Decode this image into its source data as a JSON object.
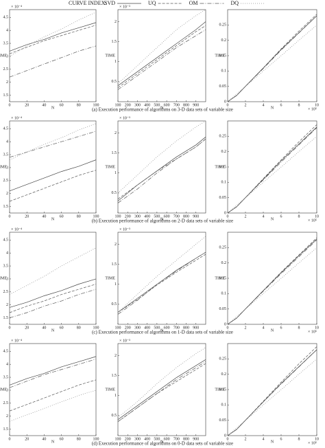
{
  "legend_title": "CURVE INDEX:",
  "captions": [
    "(a) Execution performance of algorithms on 3-D data sets of variable size",
    "(b) Execution performance of algorithms on 2-D data sets of variable size",
    "(c) Execution performance of algorithms on 1-D data sets of variable size",
    "(d) Execution performance of algorithms on 0-D data sets of variable size"
  ],
  "chart_data": [
    {
      "type": "line",
      "ylabel": "TIME",
      "xlabel": "N",
      "yscale_label": "× 10⁻⁴",
      "x": [
        0,
        20,
        40,
        60,
        80,
        100
      ],
      "xlim": [
        0,
        100
      ],
      "xticks": [
        0,
        20,
        40,
        60,
        80,
        100
      ],
      "ylim": [
        1.25,
        4.8
      ],
      "yticks": [
        1.5,
        2,
        2.5,
        3,
        3.5,
        4,
        4.5
      ],
      "series": [
        {
          "name": "SVD",
          "color": "#444444",
          "dash": "none",
          "values": [
            3.2,
            3.45,
            3.65,
            3.9,
            4.1,
            4.3
          ]
        },
        {
          "name": "UQ",
          "color": "#555555",
          "dash": "4 2",
          "values": [
            3.1,
            3.35,
            3.6,
            3.8,
            4.0,
            4.2
          ]
        },
        {
          "name": "OM",
          "color": "#555555",
          "dash": "6 2 1 2",
          "values": [
            2.2,
            2.45,
            2.7,
            2.95,
            3.2,
            3.4
          ]
        },
        {
          "name": "DQ",
          "color": "#888888",
          "dash": "1 2",
          "values": [
            3.0,
            3.4,
            3.75,
            4.05,
            4.4,
            4.7
          ]
        }
      ]
    },
    {
      "type": "line",
      "ylabel": "TIME",
      "xlabel": "N",
      "yscale_label": "× 10⁻³",
      "x": [
        100,
        300,
        500,
        700,
        900,
        1000
      ],
      "xlim": [
        100,
        1000
      ],
      "xticks": [
        100,
        200,
        300,
        400,
        500,
        600,
        700,
        800,
        900
      ],
      "ylim": [
        0,
        2.3
      ],
      "yticks": [
        0.5,
        1,
        1.5,
        2
      ],
      "series": [
        {
          "values": [
            0.4,
            0.75,
            1.1,
            1.45,
            1.8,
            2.0
          ]
        },
        {
          "values": [
            0.35,
            0.7,
            1.05,
            1.4,
            1.75,
            1.9
          ]
        },
        {
          "values": [
            0.3,
            0.65,
            1.0,
            1.35,
            1.65,
            1.8
          ]
        },
        {
          "values": [
            0.45,
            0.9,
            1.35,
            1.8,
            2.15,
            2.3
          ]
        }
      ]
    },
    {
      "type": "line",
      "ylabel": "TIME",
      "xlabel": "N",
      "xscale_label": "× 10⁵",
      "x": [
        0,
        1,
        2,
        4,
        6,
        8,
        10
      ],
      "xlim": [
        0,
        10
      ],
      "xticks": [
        0,
        2,
        4,
        6,
        8,
        10
      ],
      "ylim": [
        0,
        0.3
      ],
      "yticks": [
        0,
        0.05,
        0.1,
        0.15,
        0.2,
        0.25
      ],
      "series": [
        {
          "values": [
            0,
            0.02,
            0.05,
            0.11,
            0.17,
            0.225,
            0.28
          ]
        },
        {
          "values": [
            0,
            0.02,
            0.05,
            0.11,
            0.172,
            0.23,
            0.285
          ]
        },
        {
          "values": [
            0,
            0.02,
            0.05,
            0.108,
            0.168,
            0.224,
            0.28
          ]
        },
        {
          "values": [
            0,
            0.025,
            0.05,
            0.1,
            0.15,
            0.2,
            0.25
          ]
        }
      ]
    },
    {
      "type": "line",
      "ylabel": "TIME",
      "xlabel": "N",
      "yscale_label": "× 10⁻⁴",
      "x": [
        0,
        20,
        40,
        60,
        80,
        100
      ],
      "xlim": [
        0,
        100
      ],
      "xticks": [
        0,
        20,
        40,
        60,
        80,
        100
      ],
      "ylim": [
        1.25,
        4.8
      ],
      "yticks": [
        1.5,
        2,
        2.5,
        3,
        3.5,
        4,
        4.5
      ],
      "series": [
        {
          "values": [
            2.1,
            2.35,
            2.6,
            2.85,
            3.05,
            3.3
          ]
        },
        {
          "values": [
            1.7,
            1.95,
            2.2,
            2.45,
            2.7,
            2.9
          ]
        },
        {
          "values": [
            3.4,
            3.6,
            3.8,
            4.0,
            4.2,
            4.4
          ]
        },
        {
          "values": [
            3.3,
            3.6,
            3.9,
            4.15,
            4.45,
            4.7
          ]
        }
      ]
    },
    {
      "type": "line",
      "ylabel": "TIME",
      "xlabel": "N",
      "yscale_label": "× 10⁻³",
      "x": [
        100,
        300,
        500,
        700,
        900,
        1000
      ],
      "xlim": [
        100,
        1000
      ],
      "xticks": [
        100,
        200,
        300,
        400,
        500,
        600,
        700,
        800,
        900
      ],
      "ylim": [
        0,
        2.3
      ],
      "yticks": [
        0.5,
        1,
        1.5,
        2
      ],
      "series": [
        {
          "values": [
            0.3,
            0.7,
            1.05,
            1.4,
            1.7,
            1.9
          ]
        },
        {
          "values": [
            0.35,
            0.7,
            1.05,
            1.35,
            1.65,
            1.85
          ]
        },
        {
          "values": [
            0.25,
            0.6,
            1.0,
            1.35,
            1.65,
            1.85
          ]
        },
        {
          "values": [
            0.5,
            0.95,
            1.4,
            1.8,
            2.15,
            2.3
          ]
        }
      ]
    },
    {
      "type": "line",
      "ylabel": "TIME",
      "xlabel": "N",
      "xscale_label": "× 10⁵",
      "x": [
        0,
        1,
        2,
        4,
        6,
        8,
        10
      ],
      "xlim": [
        0,
        10
      ],
      "xticks": [
        0,
        2,
        4,
        6,
        8,
        10
      ],
      "ylim": [
        0,
        0.3
      ],
      "yticks": [
        0,
        0.05,
        0.1,
        0.15,
        0.2,
        0.25
      ],
      "series": [
        {
          "values": [
            0,
            0.02,
            0.05,
            0.11,
            0.17,
            0.225,
            0.28
          ]
        },
        {
          "values": [
            0,
            0.02,
            0.05,
            0.112,
            0.173,
            0.232,
            0.288
          ]
        },
        {
          "values": [
            0,
            0.02,
            0.05,
            0.108,
            0.166,
            0.222,
            0.278
          ]
        },
        {
          "values": [
            0,
            0.025,
            0.05,
            0.1,
            0.15,
            0.2,
            0.25
          ]
        }
      ]
    },
    {
      "type": "line",
      "ylabel": "TIME",
      "xlabel": "N",
      "yscale_label": "× 10⁻⁴",
      "x": [
        0,
        20,
        40,
        60,
        80,
        100
      ],
      "xlim": [
        0,
        100
      ],
      "xticks": [
        0,
        20,
        40,
        60,
        80,
        100
      ],
      "ylim": [
        1.25,
        4.8
      ],
      "yticks": [
        1.5,
        2,
        2.5,
        3,
        3.5,
        4,
        4.5
      ],
      "series": [
        {
          "values": [
            1.9,
            2.1,
            2.35,
            2.55,
            2.8,
            3.0
          ]
        },
        {
          "values": [
            1.7,
            1.95,
            2.15,
            2.4,
            2.6,
            2.8
          ]
        },
        {
          "values": [
            1.5,
            1.7,
            1.95,
            2.15,
            2.4,
            2.6
          ]
        },
        {
          "values": [
            2.4,
            2.75,
            3.1,
            3.5,
            3.85,
            4.2
          ]
        }
      ]
    },
    {
      "type": "line",
      "ylabel": "TIME",
      "xlabel": "N",
      "yscale_label": "× 10⁻³",
      "x": [
        100,
        300,
        500,
        700,
        900,
        1000
      ],
      "xlim": [
        100,
        1000
      ],
      "xticks": [
        100,
        200,
        300,
        400,
        500,
        600,
        700,
        800,
        900
      ],
      "ylim": [
        0,
        2.3
      ],
      "yticks": [
        0.5,
        1,
        1.5,
        2
      ],
      "series": [
        {
          "values": [
            0.3,
            0.65,
            1.0,
            1.35,
            1.65,
            1.8
          ]
        },
        {
          "values": [
            0.3,
            0.62,
            0.98,
            1.3,
            1.6,
            1.75
          ]
        },
        {
          "values": [
            0.25,
            0.6,
            1.0,
            1.33,
            1.65,
            1.8
          ]
        },
        {
          "values": [
            0.3,
            0.75,
            1.2,
            1.6,
            2.0,
            2.2
          ]
        }
      ]
    },
    {
      "type": "line",
      "ylabel": "TIME",
      "xlabel": "N",
      "xscale_label": "× 10⁵",
      "x": [
        0,
        1,
        2,
        4,
        6,
        8,
        10
      ],
      "xlim": [
        0,
        10
      ],
      "xticks": [
        0,
        2,
        4,
        6,
        8,
        10
      ],
      "ylim": [
        0,
        0.3
      ],
      "yticks": [
        0,
        0.05,
        0.1,
        0.15,
        0.2,
        0.25
      ],
      "series": [
        {
          "values": [
            0,
            0.02,
            0.05,
            0.11,
            0.168,
            0.224,
            0.278
          ]
        },
        {
          "values": [
            0,
            0.02,
            0.05,
            0.11,
            0.17,
            0.226,
            0.282
          ]
        },
        {
          "values": [
            0,
            0.02,
            0.05,
            0.108,
            0.165,
            0.22,
            0.275
          ]
        },
        {
          "values": [
            0,
            0.025,
            0.05,
            0.1,
            0.15,
            0.2,
            0.25
          ]
        }
      ]
    },
    {
      "type": "line",
      "ylabel": "TIME",
      "xlabel": "N",
      "yscale_label": "× 10⁻⁴",
      "x": [
        0,
        20,
        40,
        60,
        80,
        100
      ],
      "xlim": [
        0,
        100
      ],
      "xticks": [
        0,
        20,
        40,
        60,
        80,
        100
      ],
      "ylim": [
        1.25,
        4.8
      ],
      "yticks": [
        1.5,
        2,
        2.5,
        3,
        3.5,
        4,
        4.5
      ],
      "series": [
        {
          "values": [
            3.2,
            3.45,
            3.65,
            3.9,
            4.1,
            4.3
          ]
        },
        {
          "values": [
            2.2,
            2.45,
            2.7,
            2.95,
            3.2,
            3.4
          ]
        },
        {
          "values": [
            3.1,
            3.35,
            3.6,
            3.8,
            4.0,
            4.2
          ]
        },
        {
          "values": [
            1.8,
            2.05,
            2.3,
            2.55,
            2.8,
            3.0
          ]
        }
      ]
    },
    {
      "type": "line",
      "ylabel": "TIME",
      "xlabel": "N",
      "yscale_label": "× 10⁻³",
      "x": [
        100,
        300,
        500,
        700,
        900,
        1000
      ],
      "xlim": [
        100,
        1000
      ],
      "xticks": [
        100,
        200,
        300,
        400,
        500,
        600,
        700,
        800,
        900
      ],
      "ylim": [
        0,
        2.3
      ],
      "yticks": [
        0.5,
        1,
        1.5,
        2
      ],
      "series": [
        {
          "values": [
            0.4,
            0.75,
            1.1,
            1.45,
            1.75,
            1.9
          ]
        },
        {
          "values": [
            0.35,
            0.7,
            1.05,
            1.35,
            1.65,
            1.8
          ]
        },
        {
          "values": [
            0.35,
            0.7,
            1.05,
            1.4,
            1.7,
            1.85
          ]
        },
        {
          "values": [
            0.45,
            0.85,
            1.3,
            1.7,
            2.05,
            2.2
          ]
        }
      ]
    },
    {
      "type": "line",
      "ylabel": "TIME",
      "xlabel": "N",
      "xscale_label": "× 10⁵",
      "x": [
        0,
        1,
        2,
        4,
        6,
        8,
        10
      ],
      "xlim": [
        0,
        10
      ],
      "xticks": [
        0,
        2,
        4,
        6,
        8,
        10
      ],
      "ylim": [
        0,
        0.3
      ],
      "yticks": [
        0,
        0.05,
        0.1,
        0.15,
        0.2,
        0.25
      ],
      "series": [
        {
          "values": [
            0,
            0.02,
            0.05,
            0.11,
            0.17,
            0.225,
            0.28
          ]
        },
        {
          "values": [
            0,
            0.02,
            0.05,
            0.112,
            0.174,
            0.234,
            0.29
          ]
        },
        {
          "values": [
            0,
            0.02,
            0.05,
            0.11,
            0.168,
            0.224,
            0.28
          ]
        },
        {
          "values": [
            0,
            0.025,
            0.05,
            0.1,
            0.15,
            0.2,
            0.25
          ]
        }
      ]
    }
  ]
}
